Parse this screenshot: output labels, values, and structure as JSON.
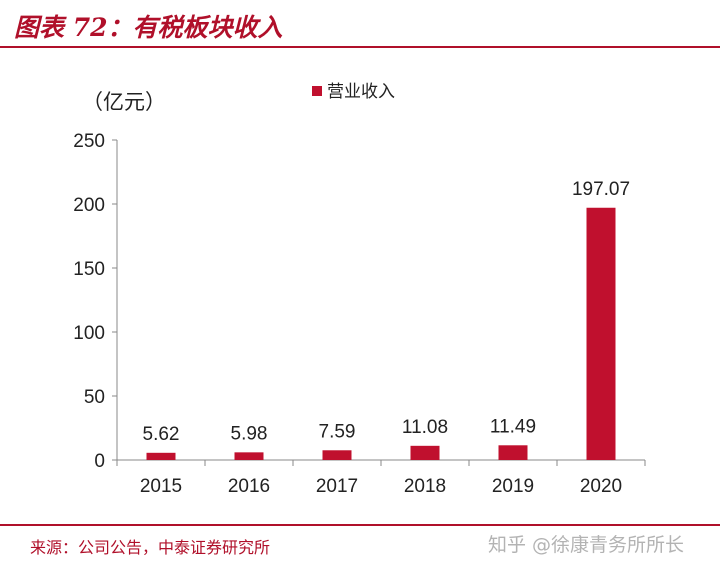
{
  "header": {
    "title": "图表 72：有税板块收入"
  },
  "footer": {
    "source": "来源：公司公告，中泰证券研究所"
  },
  "watermark": {
    "text": "知乎 @徐康青务所所长"
  },
  "colors": {
    "accent": "#b0102a",
    "bar": "#c0102e",
    "axis": "#888888"
  },
  "chart_data": {
    "type": "bar",
    "title": "",
    "unit_label": "（亿元）",
    "xlabel": "",
    "ylabel": "（亿元）",
    "categories": [
      "2015",
      "2016",
      "2017",
      "2018",
      "2019",
      "2020"
    ],
    "series": [
      {
        "name": "营业收入",
        "values": [
          5.62,
          5.98,
          7.59,
          11.08,
          11.49,
          197.07
        ]
      }
    ],
    "data_labels": [
      "5.62",
      "5.98",
      "7.59",
      "11.08",
      "11.49",
      "197.07"
    ],
    "ylim": [
      0,
      250
    ],
    "yticks": [
      0,
      50,
      100,
      150,
      200,
      250
    ],
    "grid": false,
    "legend": "top-center"
  }
}
